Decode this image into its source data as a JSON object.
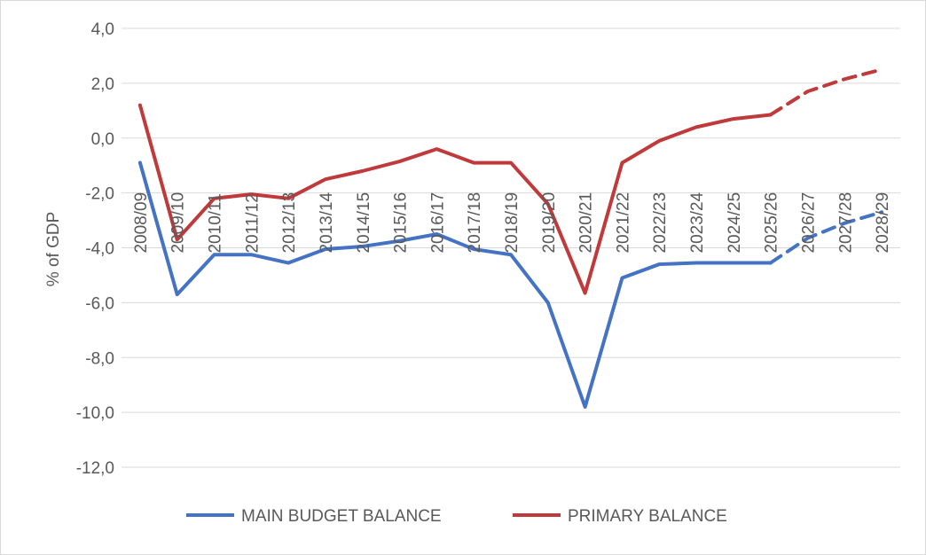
{
  "chart_data": {
    "type": "line",
    "title": "",
    "xlabel": "",
    "ylabel": "% of GDP",
    "ylim": [
      -12,
      4
    ],
    "yticks": [
      4,
      2,
      0,
      -2,
      -4,
      -6,
      -8,
      -10,
      -12
    ],
    "ytick_labels": [
      "4,0",
      "2,0",
      "0,0",
      "-2,0",
      "-4,0",
      "-6,0",
      "-8,0",
      "-10,0",
      "-12,0"
    ],
    "grid": true,
    "legend_position": "bottom",
    "categories": [
      "2008/09",
      "2009/10",
      "2010/11",
      "2011/12",
      "2012/13",
      "2013/14",
      "2014/15",
      "2015/16",
      "2016/17",
      "2017/18",
      "2018/19",
      "2019/20",
      "2020/21",
      "2021/22",
      "2022/23",
      "2023/24",
      "2024/25",
      "2025/26",
      "2026/27",
      "2027/28",
      "2028/29"
    ],
    "projection_start_index": 17,
    "series": [
      {
        "name": "MAIN BUDGET BALANCE",
        "color": "#4472c4",
        "values": [
          -0.9,
          -5.7,
          -4.25,
          -4.25,
          -4.55,
          -4.05,
          -3.95,
          -3.75,
          -3.5,
          -4.05,
          -4.25,
          -6.0,
          -9.8,
          -5.1,
          -4.6,
          -4.55,
          -4.55,
          -4.55,
          -3.65,
          -3.1,
          -2.7
        ]
      },
      {
        "name": "PRIMARY BALANCE",
        "color": "#c0393b",
        "values": [
          1.2,
          -3.7,
          -2.2,
          -2.05,
          -2.2,
          -1.5,
          -1.2,
          -0.85,
          -0.4,
          -0.9,
          -0.9,
          -2.4,
          -5.65,
          -0.9,
          -0.1,
          0.4,
          0.7,
          0.85,
          1.7,
          2.15,
          2.5
        ]
      }
    ]
  }
}
